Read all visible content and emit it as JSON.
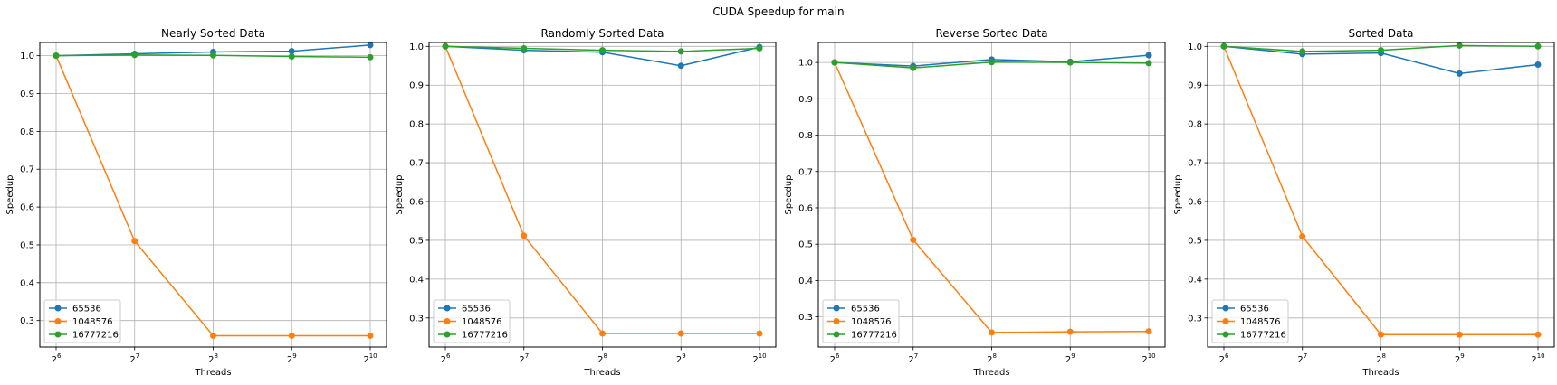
{
  "figure": {
    "suptitle": "CUDA Speedup for main"
  },
  "colors": {
    "65536": "#1f77b4",
    "1048576": "#ff7f0e",
    "16777216": "#2ca02c"
  },
  "chart_data": [
    {
      "type": "line",
      "title": "Nearly Sorted Data",
      "xlabel": "Threads",
      "ylabel": "Speedup",
      "x_scale": "log2",
      "x": [
        64,
        128,
        256,
        512,
        1024
      ],
      "x_ticks": [
        64,
        128,
        256,
        512,
        1024
      ],
      "ylim": [
        0.23,
        1.035
      ],
      "y_ticks": [
        0.3,
        0.4,
        0.5,
        0.6,
        0.7,
        0.8,
        0.9,
        1.0
      ],
      "grid": true,
      "legend": "lower left",
      "series": [
        {
          "name": "65536",
          "values": [
            1.0,
            1.005,
            1.01,
            1.012,
            1.028
          ]
        },
        {
          "name": "1048576",
          "values": [
            1.0,
            0.51,
            0.26,
            0.26,
            0.26
          ]
        },
        {
          "name": "16777216",
          "values": [
            1.0,
            1.002,
            1.001,
            0.998,
            0.996
          ]
        }
      ]
    },
    {
      "type": "line",
      "title": "Randomly Sorted Data",
      "xlabel": "Threads",
      "ylabel": "Speedup",
      "x_scale": "log2",
      "x": [
        64,
        128,
        256,
        512,
        1024
      ],
      "x_ticks": [
        64,
        128,
        256,
        512,
        1024
      ],
      "ylim": [
        0.225,
        1.01
      ],
      "y_ticks": [
        0.3,
        0.4,
        0.5,
        0.6,
        0.7,
        0.8,
        0.9,
        1.0
      ],
      "grid": true,
      "legend": "lower left",
      "series": [
        {
          "name": "65536",
          "values": [
            1.0,
            0.99,
            0.985,
            0.95,
            0.998
          ]
        },
        {
          "name": "1048576",
          "values": [
            1.0,
            0.512,
            0.26,
            0.26,
            0.26
          ]
        },
        {
          "name": "16777216",
          "values": [
            1.0,
            0.995,
            0.99,
            0.987,
            0.995
          ]
        }
      ]
    },
    {
      "type": "line",
      "title": "Reverse Sorted Data",
      "xlabel": "Threads",
      "ylabel": "Speedup",
      "x_scale": "log2",
      "x": [
        64,
        128,
        256,
        512,
        1024
      ],
      "x_ticks": [
        64,
        128,
        256,
        512,
        1024
      ],
      "ylim": [
        0.217,
        1.055
      ],
      "y_ticks": [
        0.3,
        0.4,
        0.5,
        0.6,
        0.7,
        0.8,
        0.9,
        1.0
      ],
      "grid": true,
      "legend": "lower left",
      "series": [
        {
          "name": "65536",
          "values": [
            1.0,
            0.99,
            1.008,
            1.002,
            1.02
          ]
        },
        {
          "name": "1048576",
          "values": [
            1.0,
            0.512,
            0.257,
            0.259,
            0.26
          ]
        },
        {
          "name": "16777216",
          "values": [
            1.0,
            0.985,
            1.001,
            1.0,
            0.998
          ]
        }
      ]
    },
    {
      "type": "line",
      "title": "Sorted Data",
      "xlabel": "Threads",
      "ylabel": "Speedup",
      "x_scale": "log2",
      "x": [
        64,
        128,
        256,
        512,
        1024
      ],
      "x_ticks": [
        64,
        128,
        256,
        512,
        1024
      ],
      "ylim": [
        0.225,
        1.01
      ],
      "y_ticks": [
        0.3,
        0.4,
        0.5,
        0.6,
        0.7,
        0.8,
        0.9,
        1.0
      ],
      "grid": true,
      "legend": "lower left",
      "series": [
        {
          "name": "65536",
          "values": [
            1.0,
            0.98,
            0.983,
            0.93,
            0.953
          ]
        },
        {
          "name": "1048576",
          "values": [
            1.0,
            0.51,
            0.257,
            0.257,
            0.257
          ]
        },
        {
          "name": "16777216",
          "values": [
            1.0,
            0.987,
            0.99,
            1.002,
            1.0
          ]
        }
      ]
    }
  ]
}
